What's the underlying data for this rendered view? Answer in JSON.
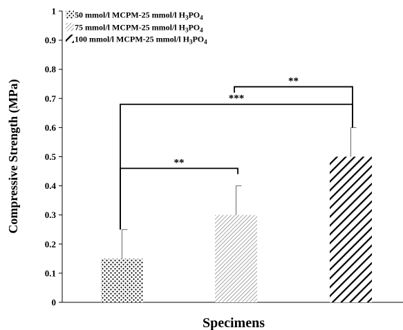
{
  "chart_data": {
    "type": "bar",
    "xlabel": "Specimens",
    "ylabel": "Compressive Strength (MPa)",
    "ylim": [
      0,
      1
    ],
    "yticks": [
      "0",
      "0.1",
      "0.2",
      "0.3",
      "0.4",
      "0.5",
      "0.6",
      "0.7",
      "0.8",
      "0.9",
      "1"
    ],
    "grid": false,
    "legend_position": "top-left",
    "series": [
      {
        "name_main": "50 mmol/l MCPM-25 mmol/l H",
        "name_sub": "3",
        "name_tail": "PO",
        "name_sub2": "4",
        "value": 0.15,
        "error": 0.1,
        "pattern": "dots"
      },
      {
        "name_main": "75 mmol/l MCPM-25 mmol/l H",
        "name_sub": "3",
        "name_tail": "PO",
        "name_sub2": "4",
        "value": 0.3,
        "error": 0.1,
        "pattern": "fine-diagonal"
      },
      {
        "name_main": "100 mmol/l MCPM-25 mmol/l H",
        "name_sub": "3",
        "name_tail": "PO",
        "name_sub2": "4",
        "value": 0.5,
        "error": 0.1,
        "pattern": "bold-diagonal"
      }
    ],
    "significance": [
      {
        "from": 0,
        "to": 1,
        "level": 0.46,
        "label": "**"
      },
      {
        "from": 0,
        "to": 2,
        "level": 0.68,
        "label": "***"
      },
      {
        "from": 1,
        "to": 2,
        "level": 0.74,
        "label": "**"
      }
    ]
  }
}
